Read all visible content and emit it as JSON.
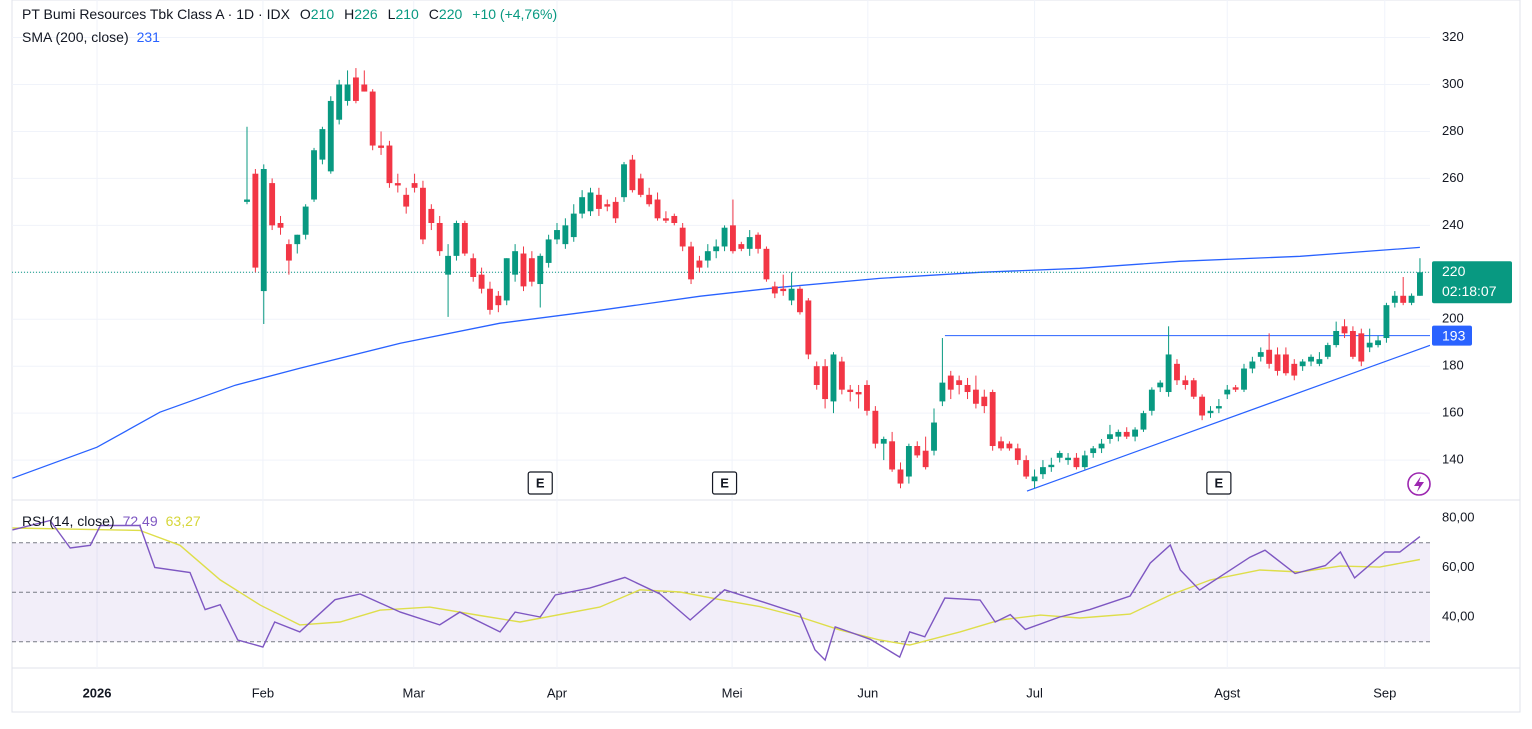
{
  "chart_data": [
    {
      "type": "candlestick",
      "title": "PT Bumi Resources Tbk Class A · 1D · IDX",
      "ohlc_letters": [
        "O",
        "H",
        "L",
        "C"
      ],
      "header": {
        "open": 210,
        "high": 226,
        "low": 210,
        "close": 220,
        "change": "+10 (+4,76%)"
      },
      "up_color": "#089981",
      "down_color": "#f23645",
      "xlim": [
        -28.05,
        141.2
      ],
      "ylim": [
        123,
        336
      ],
      "yticks": [
        140,
        160,
        180,
        200,
        220,
        240,
        260,
        280,
        300,
        320
      ],
      "grid": true,
      "candles": [
        [
          250,
          282,
          249,
          251
        ],
        [
          262,
          264,
          220,
          222
        ],
        [
          212,
          266,
          198,
          264
        ],
        [
          258,
          260,
          238,
          240
        ],
        [
          241,
          244,
          236,
          239
        ],
        [
          232,
          234,
          219,
          225
        ],
        [
          232,
          236,
          228,
          236
        ],
        [
          236,
          249,
          234,
          248
        ],
        [
          251,
          273,
          250,
          272
        ],
        [
          268,
          282,
          266,
          281
        ],
        [
          263,
          295,
          262,
          293
        ],
        [
          285,
          302,
          283,
          300
        ],
        [
          293,
          306,
          291,
          300
        ],
        [
          303,
          307,
          292,
          293
        ],
        [
          300,
          306,
          297,
          297
        ],
        [
          297,
          298,
          272,
          274
        ],
        [
          274,
          280,
          270,
          273
        ],
        [
          274,
          276,
          256,
          258
        ],
        [
          258,
          262,
          254,
          257
        ],
        [
          253,
          256,
          245,
          248
        ],
        [
          258,
          262,
          254,
          256
        ],
        [
          256,
          259,
          232,
          234
        ],
        [
          247,
          249,
          238,
          241
        ],
        [
          241,
          244,
          227,
          229
        ],
        [
          219,
          232,
          201,
          227
        ],
        [
          227,
          242,
          225,
          241
        ],
        [
          241,
          242,
          227,
          228
        ],
        [
          226,
          228,
          216,
          218
        ],
        [
          219,
          222,
          211,
          213
        ],
        [
          213,
          216,
          202,
          204
        ],
        [
          210,
          212,
          203,
          206
        ],
        [
          208,
          226,
          206,
          226
        ],
        [
          219,
          232,
          216,
          229
        ],
        [
          228,
          231,
          212,
          214
        ],
        [
          226,
          229,
          214,
          216
        ],
        [
          215,
          228,
          205,
          227
        ],
        [
          224,
          236,
          222,
          234
        ],
        [
          234,
          241,
          232,
          238
        ],
        [
          232,
          243,
          230,
          240
        ],
        [
          235,
          249,
          233,
          245
        ],
        [
          245,
          255,
          243,
          252
        ],
        [
          246,
          256,
          244,
          254
        ],
        [
          253,
          256,
          244,
          247
        ],
        [
          249,
          251,
          246,
          248
        ],
        [
          250,
          252,
          241,
          243
        ],
        [
          252,
          267,
          250,
          266
        ],
        [
          268,
          270,
          254,
          255
        ],
        [
          260,
          262,
          252,
          253
        ],
        [
          253,
          256,
          248,
          249
        ],
        [
          251,
          254,
          242,
          243
        ],
        [
          243,
          246,
          241,
          242
        ],
        [
          244,
          245,
          240,
          241
        ],
        [
          239,
          241,
          229,
          231
        ],
        [
          231,
          233,
          215,
          217
        ],
        [
          225,
          227,
          220,
          222
        ],
        [
          225,
          232,
          222,
          229
        ],
        [
          229,
          234,
          226,
          231
        ],
        [
          231,
          240,
          229,
          239
        ],
        [
          240,
          251,
          228,
          229
        ],
        [
          232,
          233,
          229,
          230
        ],
        [
          230,
          238,
          227,
          235
        ],
        [
          236,
          237,
          228,
          230
        ],
        [
          230,
          231,
          216,
          217
        ],
        [
          214,
          216,
          209,
          211
        ],
        [
          213,
          219,
          210,
          212
        ],
        [
          208,
          220,
          206,
          213
        ],
        [
          213,
          214,
          202,
          203
        ],
        [
          208,
          209,
          183,
          185
        ],
        [
          180,
          182,
          170,
          172
        ],
        [
          180,
          183,
          162,
          166
        ],
        [
          165,
          186,
          160,
          185
        ],
        [
          182,
          184,
          168,
          170
        ],
        [
          170,
          172,
          165,
          169
        ],
        [
          169,
          172,
          162,
          168
        ],
        [
          172,
          174,
          159,
          161
        ],
        [
          161,
          163,
          145,
          147
        ],
        [
          147,
          150,
          140,
          149
        ],
        [
          148,
          152,
          135,
          136
        ],
        [
          136,
          139,
          128,
          130
        ],
        [
          133,
          147,
          130,
          146
        ],
        [
          146,
          148,
          141,
          142
        ],
        [
          144,
          150,
          136,
          137
        ],
        [
          144,
          162,
          142,
          156
        ],
        [
          165,
          192,
          163,
          173
        ],
        [
          176,
          178,
          166,
          170
        ],
        [
          174,
          176,
          168,
          172
        ],
        [
          172,
          175,
          166,
          169
        ],
        [
          170,
          176,
          162,
          164
        ],
        [
          167,
          170,
          160,
          163
        ],
        [
          169,
          170,
          144,
          146
        ],
        [
          148,
          150,
          144,
          145
        ],
        [
          147,
          148,
          144,
          145
        ],
        [
          145,
          147,
          138,
          140
        ],
        [
          140,
          142,
          132,
          133
        ],
        [
          131,
          136,
          128,
          133
        ],
        [
          134,
          140,
          132,
          137
        ],
        [
          137,
          141,
          135,
          138
        ],
        [
          141,
          144,
          139,
          143
        ],
        [
          140,
          143,
          138,
          141
        ],
        [
          141,
          143,
          136,
          137
        ],
        [
          137,
          144,
          136,
          142
        ],
        [
          143,
          146,
          141,
          145
        ],
        [
          145,
          149,
          143,
          147
        ],
        [
          149,
          155,
          147,
          151
        ],
        [
          150,
          153,
          148,
          152
        ],
        [
          152,
          154,
          149,
          150
        ],
        [
          150,
          154,
          148,
          153
        ],
        [
          153,
          161,
          152,
          160
        ],
        [
          161,
          171,
          159,
          170
        ],
        [
          171,
          174,
          169,
          173
        ],
        [
          169,
          197,
          167,
          185
        ],
        [
          181,
          183,
          172,
          174
        ],
        [
          174,
          176,
          170,
          172
        ],
        [
          174,
          175,
          166,
          167
        ],
        [
          167,
          168,
          157,
          159
        ],
        [
          160,
          163,
          158,
          161
        ],
        [
          162,
          166,
          160,
          163
        ],
        [
          168,
          172,
          166,
          170
        ],
        [
          171,
          172,
          169,
          170
        ],
        [
          170,
          181,
          169,
          179
        ],
        [
          179,
          184,
          177,
          182
        ],
        [
          184,
          188,
          182,
          186
        ],
        [
          187,
          194,
          179,
          181
        ],
        [
          185,
          188,
          176,
          178
        ],
        [
          185,
          188,
          176,
          177
        ],
        [
          181,
          183,
          174,
          176
        ],
        [
          180,
          183,
          178,
          182
        ],
        [
          182,
          185,
          180,
          184
        ],
        [
          181,
          186,
          180,
          183
        ],
        [
          184,
          190,
          183,
          189
        ],
        [
          189,
          199,
          188,
          195
        ],
        [
          197,
          200,
          192,
          194
        ],
        [
          195,
          197,
          183,
          184
        ],
        [
          194,
          196,
          180,
          182
        ],
        [
          188,
          196,
          186,
          190
        ],
        [
          189,
          193,
          188,
          191
        ],
        [
          192,
          207,
          190,
          206
        ],
        [
          207,
          212,
          205,
          210
        ],
        [
          210,
          218,
          206,
          207
        ],
        [
          207,
          211,
          206,
          210
        ],
        [
          210,
          226,
          210,
          220
        ]
      ],
      "sma": {
        "name": "SMA (200, close)",
        "color": "#2962ff",
        "last": 231,
        "x": [
          -28.0,
          -17.9,
          -10.4,
          -1.4,
          6.3,
          18.3,
          30.2,
          42.1,
          54.1,
          63.6,
          75.5,
          87.5,
          99.4,
          111.3,
          125.7,
          140
        ],
        "values": [
          132.3,
          145.5,
          160.4,
          171.9,
          179.1,
          189.8,
          198.3,
          203.8,
          209.8,
          213.6,
          217.4,
          220,
          221.7,
          224.7,
          226.8,
          230.6
        ]
      },
      "hline": {
        "value": 193,
        "color": "#2962ff",
        "x_start": 83.3
      },
      "trendline": {
        "color": "#2962ff",
        "x": [
          93.1,
          141.2
        ],
        "values": [
          126.8,
          188.9
        ]
      },
      "last_price": 220,
      "countdown": "02:18:07",
      "earnings": {
        "label": "E",
        "x": [
          35.0,
          57.0,
          116.0
        ]
      }
    },
    {
      "type": "line",
      "title": "RSI (14, close)",
      "xlim": [
        -28.05,
        141.2
      ],
      "ylim": [
        19.4,
        87.3
      ],
      "yticks": [
        {
          "value": 40,
          "label": "40,00"
        },
        {
          "value": 60,
          "label": "60,00"
        },
        {
          "value": 80,
          "label": "80,00"
        }
      ],
      "bands": [
        30,
        50,
        70
      ],
      "band_color": "#7e57c2",
      "xticks": [
        {
          "value": -17.9,
          "label": "2026"
        },
        {
          "value": 1.9,
          "label": "Feb"
        },
        {
          "value": 19.9,
          "label": "Mar"
        },
        {
          "value": 37.0,
          "label": "Apr"
        },
        {
          "value": 57.9,
          "label": "Mei"
        },
        {
          "value": 74.1,
          "label": "Jun"
        },
        {
          "value": 94.0,
          "label": "Jul"
        },
        {
          "value": 117.0,
          "label": "Agst"
        },
        {
          "value": 135.8,
          "label": "Sep"
        }
      ],
      "series": [
        {
          "name": "RSI",
          "color": "#7e57c2",
          "last_label": "72,49",
          "x": [
            -28.0,
            -23.5,
            -21.1,
            -18.7,
            -17.5,
            -12.8,
            -11.0,
            -6.8,
            -5.0,
            -3.2,
            -1.1,
            1.9,
            3.3,
            6.3,
            10.5,
            13.5,
            18.3,
            23.0,
            25.4,
            30.2,
            32.0,
            35.0,
            36.8,
            40.9,
            45.1,
            49.3,
            52.9,
            57.0,
            61.2,
            66.0,
            67.8,
            69.0,
            70.2,
            74.4,
            77.9,
            79.1,
            80.9,
            83.3,
            87.5,
            89.3,
            91.1,
            92.9,
            97.0,
            100.6,
            105.4,
            107.8,
            110.2,
            111.4,
            113.7,
            119.7,
            121.5,
            125.1,
            128.7,
            130.5,
            132.2,
            135.8,
            137.6,
            140.0
          ],
          "values": [
            75.2,
            79,
            67.9,
            69,
            77,
            77,
            60,
            58,
            43,
            45,
            30.7,
            27.9,
            38,
            34,
            47,
            49.3,
            42,
            36.8,
            42,
            34,
            42,
            40,
            48.9,
            51.7,
            56,
            49.3,
            38.8,
            51,
            46.5,
            41.2,
            26.7,
            22.6,
            36,
            31,
            23.8,
            34,
            32,
            47.7,
            46.9,
            38,
            41,
            35,
            40,
            43,
            48.5,
            61.8,
            69.1,
            59,
            50.9,
            64.2,
            67,
            57.6,
            60.8,
            66.3,
            55.8,
            66.3,
            66.3,
            72.49
          ]
        },
        {
          "name": "RSI-based MA",
          "color": "#dede4a",
          "last_label": "63,27",
          "x": [
            -28.0,
            -12.8,
            -8.0,
            -3.2,
            1.6,
            6.3,
            11.1,
            15.9,
            21.8,
            27.8,
            32.6,
            42.1,
            46.9,
            51.7,
            56.5,
            61.2,
            66.0,
            70.8,
            75.5,
            79.1,
            85.1,
            89.9,
            94.7,
            99.4,
            105.4,
            110.2,
            115.0,
            120.9,
            125.7,
            130.5,
            135.2,
            140.0
          ],
          "values": [
            76,
            75,
            69,
            55,
            44.8,
            36.8,
            38,
            42.8,
            44,
            40.6,
            38,
            44,
            51,
            50.1,
            47,
            44.2,
            40,
            34.7,
            30.7,
            28.7,
            34,
            38.8,
            40.8,
            39.6,
            41.2,
            48.9,
            55,
            59,
            58.2,
            60.6,
            60.2,
            63.27
          ]
        }
      ]
    }
  ]
}
